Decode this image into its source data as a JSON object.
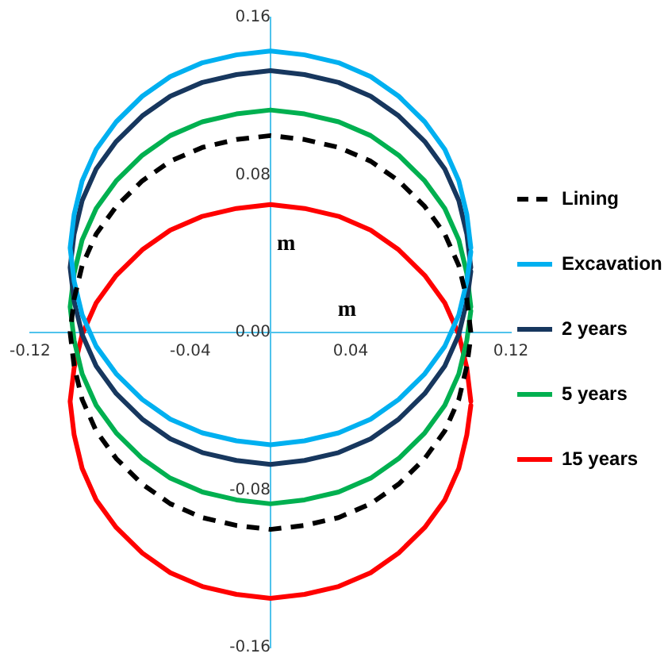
{
  "chart_data": {
    "type": "line",
    "xlabel": "m",
    "ylabel": "m",
    "x": [
      0.1,
      0.098,
      0.094,
      0.087,
      0.077,
      0.064,
      0.05,
      0.034,
      0.017,
      0,
      -0.017,
      -0.034,
      -0.05,
      -0.064,
      -0.077,
      -0.087,
      -0.094,
      -0.098,
      -0.1,
      -0.098,
      -0.094,
      -0.087,
      -0.077,
      -0.064,
      -0.05,
      -0.034,
      -0.017,
      0,
      0.017,
      0.034,
      0.05,
      0.064,
      0.077,
      0.087,
      0.094,
      0.098,
      0.1
    ],
    "series": [
      {
        "name": "Lining",
        "color": "#000000",
        "line_style": "dashed",
        "values": [
          0,
          0.017,
          0.034,
          0.05,
          0.064,
          0.077,
          0.087,
          0.094,
          0.098,
          0.1,
          0.098,
          0.094,
          0.087,
          0.077,
          0.064,
          0.05,
          0.034,
          0.017,
          0,
          -0.017,
          -0.034,
          -0.05,
          -0.064,
          -0.077,
          -0.087,
          -0.094,
          -0.098,
          -0.1,
          -0.098,
          -0.094,
          -0.087,
          -0.077,
          -0.064,
          -0.05,
          -0.034,
          -0.017,
          -0.002
        ]
      },
      {
        "name": "Excavation",
        "color": "#00b0f0",
        "values": [
          0.043,
          0.06,
          0.077,
          0.093,
          0.107,
          0.12,
          0.13,
          0.137,
          0.141,
          0.143,
          0.141,
          0.137,
          0.13,
          0.12,
          0.107,
          0.093,
          0.077,
          0.06,
          0.043,
          0.026,
          0.009,
          -0.007,
          -0.021,
          -0.034,
          -0.044,
          -0.051,
          -0.055,
          -0.057,
          -0.055,
          -0.051,
          -0.044,
          -0.034,
          -0.021,
          -0.007,
          0.009,
          0.026,
          0.041
        ]
      },
      {
        "name": "2 years",
        "color": "#17375e",
        "values": [
          0.033,
          0.05,
          0.067,
          0.083,
          0.097,
          0.11,
          0.12,
          0.127,
          0.131,
          0.133,
          0.131,
          0.127,
          0.12,
          0.11,
          0.097,
          0.083,
          0.067,
          0.05,
          0.033,
          0.016,
          -0.001,
          -0.017,
          -0.031,
          -0.044,
          -0.054,
          -0.061,
          -0.065,
          -0.067,
          -0.065,
          -0.061,
          -0.054,
          -0.044,
          -0.031,
          -0.017,
          -0.001,
          0.016,
          0.031
        ]
      },
      {
        "name": "5 years",
        "color": "#00b050",
        "values": [
          0.013,
          0.03,
          0.047,
          0.063,
          0.077,
          0.09,
          0.1,
          0.107,
          0.111,
          0.113,
          0.111,
          0.107,
          0.1,
          0.09,
          0.077,
          0.063,
          0.047,
          0.03,
          0.013,
          -0.004,
          -0.021,
          -0.037,
          -0.051,
          -0.064,
          -0.074,
          -0.081,
          -0.085,
          -0.087,
          -0.085,
          -0.081,
          -0.074,
          -0.064,
          -0.051,
          -0.037,
          -0.021,
          -0.004,
          0.011
        ]
      },
      {
        "name": "15 years",
        "color": "#ff0000",
        "values": [
          -0.035,
          -0.018,
          -0.001,
          0.015,
          0.029,
          0.042,
          0.052,
          0.059,
          0.063,
          0.065,
          0.063,
          0.059,
          0.052,
          0.042,
          0.029,
          0.015,
          -0.001,
          -0.018,
          -0.035,
          -0.052,
          -0.069,
          -0.085,
          -0.099,
          -0.112,
          -0.122,
          -0.129,
          -0.133,
          -0.135,
          -0.133,
          -0.129,
          -0.122,
          -0.112,
          -0.099,
          -0.085,
          -0.069,
          -0.052,
          -0.037
        ]
      }
    ],
    "xlim": [
      -0.12,
      0.12
    ],
    "ylim": [
      -0.16,
      0.16
    ],
    "xticks": [
      -0.12,
      -0.04,
      0.04,
      0.12
    ],
    "yticks": [
      -0.16,
      -0.08,
      {
        "value": 0,
        "label": "0.00"
      },
      0.08,
      0.16
    ],
    "grid": false,
    "legend": "right",
    "marker": "none",
    "line_style": "solid"
  }
}
